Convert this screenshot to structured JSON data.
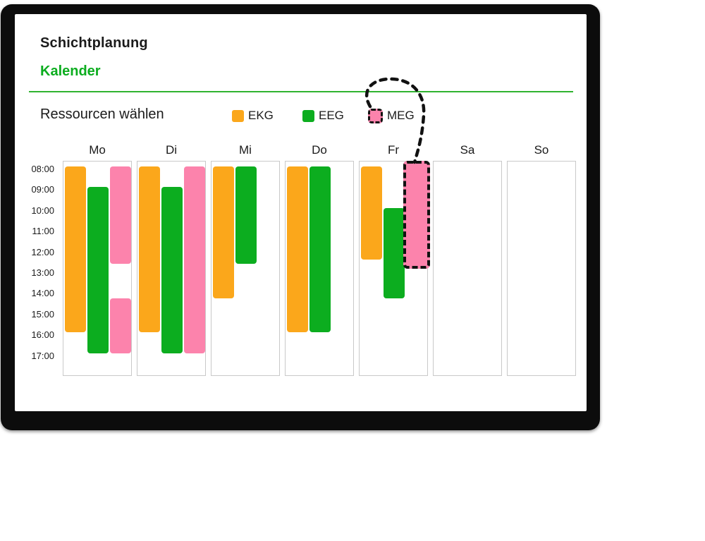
{
  "app": {
    "title": "Schichtplanung",
    "subtitle": "Kalender"
  },
  "resources": {
    "heading": "Ressourcen wählen"
  },
  "legend": [
    {
      "id": "EKG",
      "label": "EKG",
      "color": "#FBA71B",
      "dragging": false
    },
    {
      "id": "EEG",
      "label": "EEG",
      "color": "#0CAD1F",
      "dragging": false
    },
    {
      "id": "MEG",
      "label": "MEG",
      "color": "#FC83AC",
      "dragging": true
    }
  ],
  "calendar": {
    "days": [
      "Mo",
      "Di",
      "Mi",
      "Do",
      "Fr",
      "Sa",
      "So"
    ],
    "time_labels": [
      "08:00",
      "09:00",
      "10:00",
      "11:00",
      "12:00",
      "13:00",
      "14:00",
      "15:00",
      "16:00",
      "17:00"
    ],
    "shifts": [
      {
        "day": "Mo",
        "resource": "EKG",
        "start": 8,
        "end": 16,
        "time": "08:00–16:00"
      },
      {
        "day": "Mo",
        "resource": "EEG",
        "start": 9,
        "end": 17,
        "time": "09:00–17:00"
      },
      {
        "day": "Mo",
        "resource": "MEG",
        "start": 8,
        "end": 12.7,
        "time": "08:00–12:40"
      },
      {
        "day": "Mo",
        "resource": "MEG",
        "start": 14.35,
        "end": 17,
        "time": "14:20–17:00"
      },
      {
        "day": "Di",
        "resource": "EKG",
        "start": 8,
        "end": 16,
        "time": "08:00–16:00"
      },
      {
        "day": "Di",
        "resource": "EEG",
        "start": 9,
        "end": 17,
        "time": "09:00–17:00"
      },
      {
        "day": "Di",
        "resource": "MEG",
        "start": 8,
        "end": 17,
        "time": "08:00–17:00"
      },
      {
        "day": "Mi",
        "resource": "EKG",
        "start": 8,
        "end": 14.35,
        "time": "08:00–14:20"
      },
      {
        "day": "Mi",
        "resource": "EEG",
        "start": 8,
        "end": 12.7,
        "time": "08:00–12:40"
      },
      {
        "day": "Do",
        "resource": "EKG",
        "start": 8,
        "end": 16,
        "time": "08:00–16:00"
      },
      {
        "day": "Do",
        "resource": "EEG",
        "start": 8,
        "end": 16,
        "time": "08:00–16:00"
      },
      {
        "day": "Fr",
        "resource": "EKG",
        "start": 8,
        "end": 12.5,
        "time": "08:00–12:30"
      },
      {
        "day": "Fr",
        "resource": "EEG",
        "start": 10,
        "end": 14.35,
        "time": "10:00–14:20"
      },
      {
        "day": "Fr",
        "resource": "MEG",
        "start": 7.85,
        "end": 12.8,
        "time": "08:00–12:40",
        "dragging": true
      }
    ]
  },
  "colors": {
    "accent_green": "#0CAD1F",
    "divider_green": "#2FB32F",
    "orange": "#FBA71B",
    "pink": "#FC83AC",
    "drag_dash": "#111111",
    "column_border": "#C9C9C9",
    "text": "#1B1B1B",
    "frame": "#0C0C0C"
  }
}
